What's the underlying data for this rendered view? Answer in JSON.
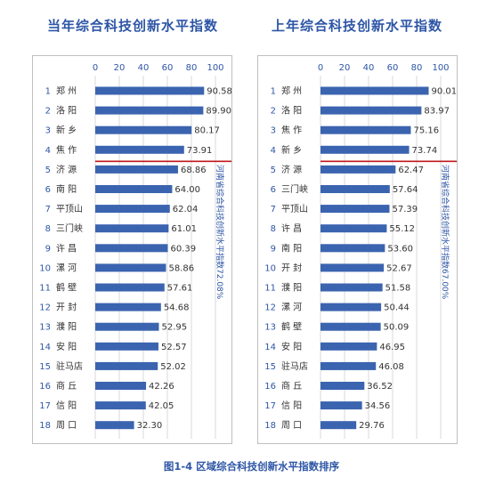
{
  "figure_caption": "图1-4  区域综合科技创新水平指数排序",
  "chart_data": [
    {
      "type": "bar",
      "orientation": "horizontal",
      "title": "当年综合科技创新水平指数",
      "xlim": [
        0,
        100
      ],
      "x_ticks": [
        "0",
        "20",
        "40",
        "60",
        "80",
        "100"
      ],
      "ranks": [
        "1",
        "2",
        "3",
        "4",
        "5",
        "6",
        "7",
        "8",
        "9",
        "10",
        "11",
        "12",
        "13",
        "14",
        "15",
        "16",
        "17",
        "18"
      ],
      "categories": [
        "郑  州",
        "洛  阳",
        "新  乡",
        "焦  作",
        "济  源",
        "南  阳",
        "平顶山",
        "三门峡",
        "许  昌",
        "漯  河",
        "鹤  壁",
        "开  封",
        "濮  阳",
        "安  阳",
        "驻马店",
        "商  丘",
        "信  阳",
        "周  口"
      ],
      "values": [
        90.58,
        89.9,
        80.17,
        73.91,
        68.86,
        64.0,
        62.04,
        61.01,
        60.39,
        58.86,
        57.61,
        54.68,
        52.95,
        52.57,
        52.02,
        42.26,
        42.05,
        32.3
      ],
      "value_labels": [
        "90.58",
        "89.90",
        "80.17",
        "73.91",
        "68.86",
        "64.00",
        "62.04",
        "61.01",
        "60.39",
        "58.86",
        "57.61",
        "54.68",
        "52.95",
        "52.57",
        "52.02",
        "42.26",
        "42.05",
        "32.30"
      ],
      "reference_line_after_rank": 4,
      "side_note": "河南省综合科技创新水平指数72.08%",
      "bar_color": "#3b64b0",
      "line_color": "#c0181c",
      "grid": true
    },
    {
      "type": "bar",
      "orientation": "horizontal",
      "title": "上年综合科技创新水平指数",
      "xlim": [
        0,
        100
      ],
      "x_ticks": [
        "0",
        "20",
        "40",
        "60",
        "80",
        "100"
      ],
      "ranks": [
        "1",
        "2",
        "3",
        "4",
        "5",
        "6",
        "7",
        "8",
        "9",
        "10",
        "11",
        "12",
        "13",
        "14",
        "15",
        "16",
        "17",
        "18"
      ],
      "categories": [
        "郑  州",
        "洛  阳",
        "焦  作",
        "新  乡",
        "济  源",
        "三门峡",
        "平顶山",
        "许  昌",
        "南  阳",
        "开  封",
        "濮  阳",
        "漯  河",
        "鹤  壁",
        "安  阳",
        "驻马店",
        "商  丘",
        "信  阳",
        "周  口"
      ],
      "values": [
        90.01,
        83.97,
        75.16,
        73.74,
        62.47,
        57.64,
        57.39,
        55.12,
        53.6,
        52.67,
        51.58,
        50.44,
        50.09,
        46.95,
        46.08,
        36.52,
        34.56,
        29.76
      ],
      "value_labels": [
        "90.01",
        "83.97",
        "75.16",
        "73.74",
        "62.47",
        "57.64",
        "57.39",
        "55.12",
        "53.60",
        "52.67",
        "51.58",
        "50.44",
        "50.09",
        "46.95",
        "46.08",
        "36.52",
        "34.56",
        "29.76"
      ],
      "reference_line_after_rank": 4,
      "side_note": "河南省综合科技创新水平指数67.00%",
      "bar_color": "#3b64b0",
      "line_color": "#c0181c",
      "grid": true
    }
  ]
}
